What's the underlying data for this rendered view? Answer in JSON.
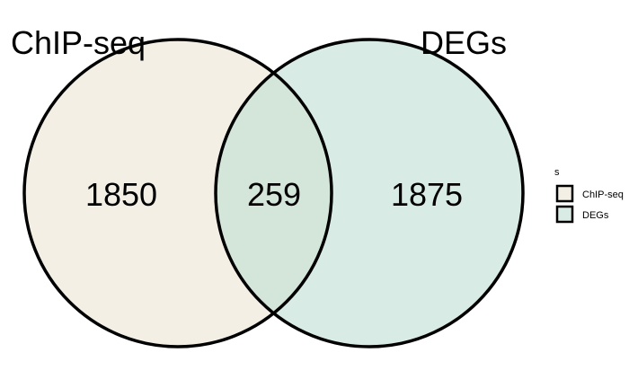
{
  "venn": {
    "sets": [
      {
        "name": "ChIP-seq",
        "color": "#f3efe4"
      },
      {
        "name": "DEGs",
        "color": "#d8ece5"
      }
    ],
    "overlap_color": "#d4e6da",
    "outline_color": "#000000",
    "regions": {
      "only_a": "1850",
      "both": "259",
      "only_b": "1875"
    }
  },
  "legend": {
    "title": "s",
    "items": [
      {
        "label": "ChIP-seq"
      },
      {
        "label": "DEGs"
      }
    ]
  }
}
